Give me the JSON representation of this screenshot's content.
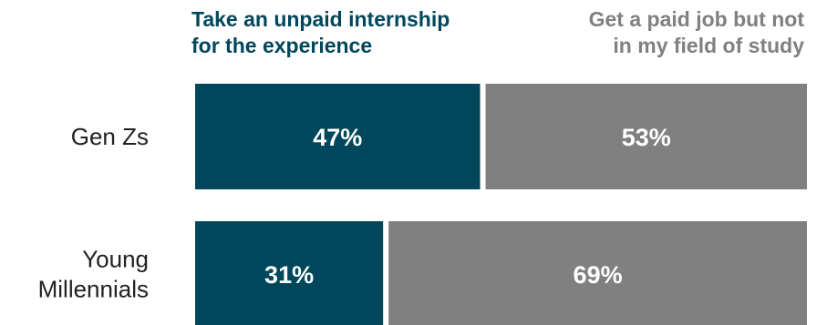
{
  "chart_data": {
    "type": "bar",
    "orientation": "horizontal",
    "stacked": true,
    "categories": [
      [
        "Gen Zs"
      ],
      [
        "Young",
        "Millennials"
      ]
    ],
    "category_names": [
      "Gen Zs",
      "Young Millennials"
    ],
    "series": [
      {
        "name_lines": [
          "Take an unpaid internship",
          "for the experience"
        ],
        "name": "Take an unpaid internship for the experience",
        "color": "#00475b",
        "values": [
          47,
          31
        ],
        "labels": [
          "47%",
          "31%"
        ]
      },
      {
        "name_lines": [
          "Get a paid job but not",
          "in my field of study"
        ],
        "name": "Get a paid job but not in my field of study",
        "color": "#808080",
        "values": [
          53,
          69
        ],
        "labels": [
          "53%",
          "69%"
        ]
      }
    ],
    "xlim": [
      0,
      100
    ],
    "legend_position": "top",
    "grid": false,
    "unit": "%"
  }
}
